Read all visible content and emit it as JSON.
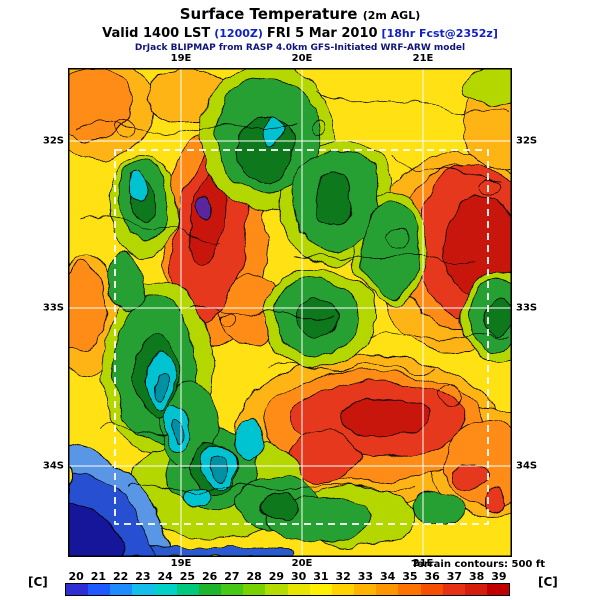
{
  "header": {
    "title_main": "Surface Temperature",
    "title_suffix": "(2m AGL)",
    "valid_prefix": "Valid 1400 LST",
    "valid_zulu": "(1200Z)",
    "valid_date": "FRI 5 Mar 2010",
    "valid_fcst": "[18hr Fcst@2352z]",
    "model_line": "DrJack BLIPMAP from RASP 4.0km GFS-Initiated WRF-ARW model"
  },
  "map": {
    "lat_ticks": [
      "32S",
      "33S",
      "34S"
    ],
    "lon_ticks": [
      "19E",
      "20E",
      "21E"
    ],
    "terrain_note": "Terrain contours: 500 ft"
  },
  "colorbar": {
    "unit_label": "[C]",
    "values": [
      20,
      21,
      22,
      23,
      24,
      25,
      26,
      27,
      28,
      29,
      30,
      31,
      32,
      33,
      34,
      35,
      36,
      37,
      38,
      39
    ],
    "colors": [
      "#2E2ED2",
      "#1E5AFF",
      "#1E8CFF",
      "#14BEEB",
      "#00D2C8",
      "#00C87D",
      "#1EB42D",
      "#46C814",
      "#78D200",
      "#B4DC00",
      "#E6E600",
      "#FFF000",
      "#FFD200",
      "#FFB400",
      "#FF9600",
      "#FF7300",
      "#F55000",
      "#E63214",
      "#D21E0A",
      "#C00000"
    ]
  },
  "chart_data": {
    "type": "heatmap",
    "title": "Surface Temperature (2m AGL)",
    "unit": "C",
    "scale_min": 20,
    "scale_max": 39,
    "x_ticks": [
      "19E",
      "20E",
      "21E"
    ],
    "y_ticks": [
      "32S",
      "33S",
      "34S"
    ],
    "notes": "Filled temperature contours with 500 ft terrain contours; hot (37-39C) zones west-center band and eastern region, warm yellow/orange elsewhere, green/cyan (24-28C) along mountain ridges, cold blue ocean (20-22C) in southwest corner."
  }
}
